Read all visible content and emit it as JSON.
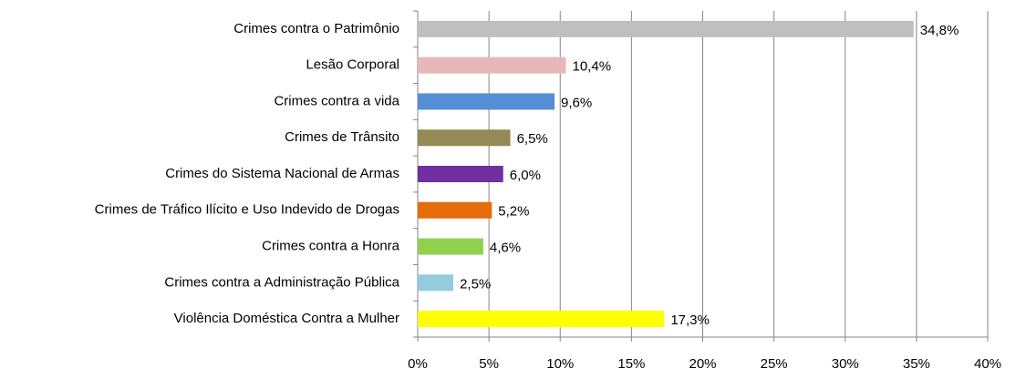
{
  "chart_data": {
    "type": "barh",
    "categories": [
      "Crimes contra o Patrimônio",
      "Lesão Corporal",
      "Crimes contra a vida",
      "Crimes de Trânsito",
      "Crimes do Sistema Nacional de Armas",
      "Crimes de Tráfico Ilícito e Uso Indevido de Drogas",
      "Crimes contra a Honra",
      "Crimes contra a Administração Pública",
      "Violência Doméstica Contra a Mulher"
    ],
    "values": [
      34.8,
      10.4,
      9.6,
      6.5,
      6.0,
      5.2,
      4.6,
      2.5,
      17.3
    ],
    "value_labels": [
      "34,8%",
      "10,4%",
      "9,6%",
      "6,5%",
      "6,0%",
      "5,2%",
      "4,6%",
      "2,5%",
      "17,3%"
    ],
    "colors": [
      "#bfbfbf",
      "#e6b9b8",
      "#558ed5",
      "#948a54",
      "#7030a0",
      "#e46c0a",
      "#92d050",
      "#93cddd",
      "#ffff00"
    ],
    "xlim": [
      0,
      40
    ],
    "xticks": [
      {
        "value": 0,
        "label": "0%"
      },
      {
        "value": 5,
        "label": "5%"
      },
      {
        "value": 10,
        "label": "10%"
      },
      {
        "value": 15,
        "label": "15%"
      },
      {
        "value": 20,
        "label": "20%"
      },
      {
        "value": 25,
        "label": "25%"
      },
      {
        "value": 30,
        "label": "30%"
      },
      {
        "value": 35,
        "label": "35%"
      },
      {
        "value": 40,
        "label": "40%"
      }
    ],
    "grid": true
  }
}
